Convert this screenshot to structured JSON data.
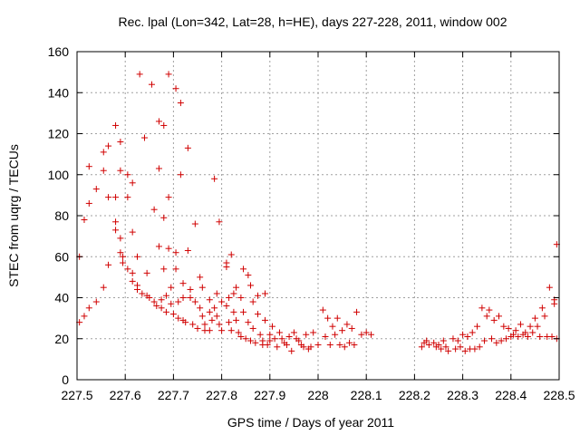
{
  "chart_data": {
    "type": "scatter",
    "title": "Rec. lpal (Lon=342, Lat=28, h=HE), days 227-228, 2011, window 002",
    "xlabel": "GPS time / Days of year 2011",
    "ylabel": "STEC from uqrg / TECUs",
    "xlim": [
      227.5,
      228.5
    ],
    "ylim": [
      0,
      160
    ],
    "xticks": [
      227.5,
      227.6,
      227.7,
      227.8,
      227.9,
      228.0,
      228.1,
      228.2,
      228.3,
      228.4,
      228.5
    ],
    "xtick_labels": [
      "227.5",
      "227.6",
      "227.7",
      "227.8",
      "227.9",
      "228",
      "228.1",
      "228.2",
      "228.3",
      "228.4",
      "228.5"
    ],
    "yticks": [
      0,
      20,
      40,
      60,
      80,
      100,
      120,
      140,
      160
    ],
    "ytick_labels": [
      "0",
      "20",
      "40",
      "60",
      "80",
      "100",
      "120",
      "140",
      "160"
    ],
    "grid": true,
    "marker": "+",
    "color": "#d00000",
    "points": [
      [
        227.505,
        60
      ],
      [
        227.505,
        28
      ],
      [
        227.515,
        78
      ],
      [
        227.515,
        31
      ],
      [
        227.525,
        104
      ],
      [
        227.525,
        86
      ],
      [
        227.525,
        35
      ],
      [
        227.54,
        93
      ],
      [
        227.54,
        38
      ],
      [
        227.555,
        111
      ],
      [
        227.555,
        102
      ],
      [
        227.555,
        45
      ],
      [
        227.565,
        114
      ],
      [
        227.565,
        89
      ],
      [
        227.565,
        56
      ],
      [
        227.58,
        124
      ],
      [
        227.58,
        89
      ],
      [
        227.58,
        77
      ],
      [
        227.58,
        73
      ],
      [
        227.59,
        116
      ],
      [
        227.59,
        102
      ],
      [
        227.59,
        69
      ],
      [
        227.59,
        62
      ],
      [
        227.595,
        60
      ],
      [
        227.595,
        57
      ],
      [
        227.605,
        100
      ],
      [
        227.605,
        89
      ],
      [
        227.605,
        54
      ],
      [
        227.615,
        96
      ],
      [
        227.615,
        72
      ],
      [
        227.615,
        52
      ],
      [
        227.615,
        48
      ],
      [
        227.625,
        60
      ],
      [
        227.625,
        46
      ],
      [
        227.625,
        44
      ],
      [
        227.63,
        149
      ],
      [
        227.635,
        42
      ],
      [
        227.64,
        118
      ],
      [
        227.645,
        52
      ],
      [
        227.645,
        41
      ],
      [
        227.65,
        40
      ],
      [
        227.655,
        144
      ],
      [
        227.66,
        83
      ],
      [
        227.66,
        38
      ],
      [
        227.665,
        36
      ],
      [
        227.67,
        126
      ],
      [
        227.67,
        103
      ],
      [
        227.67,
        65
      ],
      [
        227.675,
        39
      ],
      [
        227.675,
        35
      ],
      [
        227.68,
        124
      ],
      [
        227.68,
        79
      ],
      [
        227.68,
        54
      ],
      [
        227.685,
        41
      ],
      [
        227.685,
        33
      ],
      [
        227.69,
        149
      ],
      [
        227.69,
        89
      ],
      [
        227.69,
        64
      ],
      [
        227.695,
        45
      ],
      [
        227.695,
        37
      ],
      [
        227.7,
        32
      ],
      [
        227.705,
        142
      ],
      [
        227.705,
        62
      ],
      [
        227.705,
        54
      ],
      [
        227.71,
        38
      ],
      [
        227.71,
        30
      ],
      [
        227.715,
        135
      ],
      [
        227.715,
        100
      ],
      [
        227.72,
        47
      ],
      [
        227.72,
        40
      ],
      [
        227.72,
        29
      ],
      [
        227.725,
        28
      ],
      [
        227.73,
        113
      ],
      [
        227.73,
        63
      ],
      [
        227.735,
        44
      ],
      [
        227.735,
        40
      ],
      [
        227.74,
        27
      ],
      [
        227.745,
        76
      ],
      [
        227.745,
        38
      ],
      [
        227.75,
        25
      ],
      [
        227.755,
        50
      ],
      [
        227.755,
        35
      ],
      [
        227.76,
        45
      ],
      [
        227.76,
        31
      ],
      [
        227.765,
        27
      ],
      [
        227.765,
        24
      ],
      [
        227.775,
        39
      ],
      [
        227.775,
        33
      ],
      [
        227.775,
        24
      ],
      [
        227.78,
        29
      ],
      [
        227.785,
        98
      ],
      [
        227.785,
        35
      ],
      [
        227.79,
        42
      ],
      [
        227.79,
        31
      ],
      [
        227.795,
        77
      ],
      [
        227.795,
        27
      ],
      [
        227.8,
        24
      ],
      [
        227.8,
        38
      ],
      [
        227.81,
        57
      ],
      [
        227.81,
        55
      ],
      [
        227.81,
        36
      ],
      [
        227.815,
        40
      ],
      [
        227.815,
        28
      ],
      [
        227.82,
        61
      ],
      [
        227.82,
        24
      ],
      [
        227.825,
        42
      ],
      [
        227.825,
        33
      ],
      [
        227.83,
        45
      ],
      [
        227.83,
        29
      ],
      [
        227.835,
        23
      ],
      [
        227.84,
        40
      ],
      [
        227.84,
        21
      ],
      [
        227.845,
        54
      ],
      [
        227.845,
        33
      ],
      [
        227.85,
        20
      ],
      [
        227.855,
        51
      ],
      [
        227.855,
        28
      ],
      [
        227.86,
        46
      ],
      [
        227.86,
        19
      ],
      [
        227.865,
        38
      ],
      [
        227.865,
        25
      ],
      [
        227.87,
        18
      ],
      [
        227.875,
        41
      ],
      [
        227.875,
        32
      ],
      [
        227.88,
        22
      ],
      [
        227.885,
        19
      ],
      [
        227.885,
        17
      ],
      [
        227.89,
        42
      ],
      [
        227.89,
        29
      ],
      [
        227.895,
        17
      ],
      [
        227.9,
        22
      ],
      [
        227.9,
        19
      ],
      [
        227.905,
        26
      ],
      [
        227.91,
        20
      ],
      [
        227.915,
        16
      ],
      [
        227.92,
        23
      ],
      [
        227.925,
        20
      ],
      [
        227.93,
        18
      ],
      [
        227.935,
        17
      ],
      [
        227.94,
        21
      ],
      [
        227.945,
        14
      ],
      [
        227.95,
        23
      ],
      [
        227.955,
        20
      ],
      [
        227.96,
        19
      ],
      [
        227.965,
        17
      ],
      [
        227.97,
        16
      ],
      [
        227.975,
        22
      ],
      [
        227.98,
        15
      ],
      [
        227.985,
        16
      ],
      [
        227.99,
        23
      ],
      [
        228.0,
        17
      ],
      [
        228.01,
        34
      ],
      [
        228.015,
        21
      ],
      [
        228.02,
        30
      ],
      [
        228.025,
        17
      ],
      [
        228.03,
        26
      ],
      [
        228.035,
        22
      ],
      [
        228.04,
        30
      ],
      [
        228.045,
        17
      ],
      [
        228.05,
        24
      ],
      [
        228.055,
        16
      ],
      [
        228.06,
        27
      ],
      [
        228.065,
        18
      ],
      [
        228.07,
        25
      ],
      [
        228.075,
        17
      ],
      [
        228.08,
        33
      ],
      [
        228.09,
        22
      ],
      [
        228.1,
        23
      ],
      [
        228.11,
        22
      ],
      [
        228.215,
        16
      ],
      [
        228.22,
        18
      ],
      [
        228.225,
        19
      ],
      [
        228.23,
        17
      ],
      [
        228.24,
        18
      ],
      [
        228.245,
        16
      ],
      [
        228.25,
        17
      ],
      [
        228.255,
        15
      ],
      [
        228.26,
        19
      ],
      [
        228.265,
        16
      ],
      [
        228.27,
        14
      ],
      [
        228.28,
        20
      ],
      [
        228.285,
        15
      ],
      [
        228.29,
        19
      ],
      [
        228.295,
        16
      ],
      [
        228.3,
        22
      ],
      [
        228.305,
        14
      ],
      [
        228.31,
        21
      ],
      [
        228.315,
        15
      ],
      [
        228.32,
        23
      ],
      [
        228.325,
        15
      ],
      [
        228.33,
        26
      ],
      [
        228.335,
        16
      ],
      [
        228.34,
        35
      ],
      [
        228.345,
        19
      ],
      [
        228.35,
        31
      ],
      [
        228.355,
        34
      ],
      [
        228.36,
        20
      ],
      [
        228.365,
        29
      ],
      [
        228.37,
        18
      ],
      [
        228.375,
        31
      ],
      [
        228.38,
        19
      ],
      [
        228.385,
        26
      ],
      [
        228.39,
        20
      ],
      [
        228.395,
        25
      ],
      [
        228.4,
        21
      ],
      [
        228.405,
        22
      ],
      [
        228.41,
        24
      ],
      [
        228.415,
        21
      ],
      [
        228.42,
        27
      ],
      [
        228.425,
        22
      ],
      [
        228.43,
        23
      ],
      [
        228.435,
        21
      ],
      [
        228.44,
        26
      ],
      [
        228.445,
        23
      ],
      [
        228.45,
        30
      ],
      [
        228.455,
        26
      ],
      [
        228.46,
        21
      ],
      [
        228.465,
        35
      ],
      [
        228.47,
        31
      ],
      [
        228.475,
        21
      ],
      [
        228.48,
        45
      ],
      [
        228.485,
        21
      ],
      [
        228.49,
        39
      ],
      [
        228.49,
        37
      ],
      [
        228.495,
        66
      ],
      [
        228.495,
        20
      ]
    ]
  }
}
